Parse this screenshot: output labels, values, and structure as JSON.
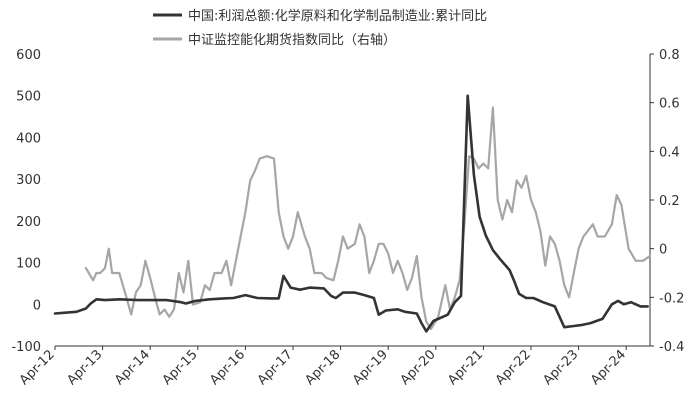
{
  "chart_data": {
    "type": "line",
    "title": "",
    "legend_position": "top-center",
    "grid": false,
    "left_axis": {
      "min": -100,
      "max": 600,
      "ticks": [
        "-100",
        "0",
        "100",
        "200",
        "300",
        "400",
        "500",
        "600"
      ]
    },
    "right_axis": {
      "min": -0.4,
      "max": 0.8,
      "ticks": [
        "-0.4",
        "-0.2",
        "0",
        "0.2",
        "0.4",
        "0.6",
        "0.8"
      ]
    },
    "x_labels": [
      "Apr-12",
      "Apr-13",
      "Apr-14",
      "Apr-15",
      "Apr-16",
      "Apr-17",
      "Apr-18",
      "Apr-19",
      "Apr-20",
      "Apr-21",
      "Apr-22",
      "Apr-23",
      "Apr-24"
    ],
    "series": [
      {
        "name": "中国:利润总额:化学原料和化学制品制造业:累计同比",
        "axis": "left",
        "color": "#333333",
        "points": [
          [
            2012.25,
            -22
          ],
          [
            2012.5,
            -20
          ],
          [
            2012.7,
            -18
          ],
          [
            2012.9,
            -10
          ],
          [
            2013.0,
            2
          ],
          [
            2013.12,
            12
          ],
          [
            2013.3,
            10
          ],
          [
            2013.6,
            12
          ],
          [
            2014.0,
            10
          ],
          [
            2014.3,
            10
          ],
          [
            2014.6,
            10
          ],
          [
            2014.9,
            5
          ],
          [
            2015.0,
            2
          ],
          [
            2015.2,
            8
          ],
          [
            2015.5,
            12
          ],
          [
            2015.8,
            14
          ],
          [
            2016.0,
            15
          ],
          [
            2016.25,
            22
          ],
          [
            2016.5,
            15
          ],
          [
            2016.8,
            14
          ],
          [
            2016.95,
            14
          ],
          [
            2017.05,
            68
          ],
          [
            2017.2,
            40
          ],
          [
            2017.4,
            35
          ],
          [
            2017.6,
            40
          ],
          [
            2017.9,
            38
          ],
          [
            2018.05,
            20
          ],
          [
            2018.15,
            15
          ],
          [
            2018.3,
            28
          ],
          [
            2018.55,
            28
          ],
          [
            2018.75,
            22
          ],
          [
            2018.95,
            15
          ],
          [
            2019.05,
            -25
          ],
          [
            2019.2,
            -15
          ],
          [
            2019.45,
            -12
          ],
          [
            2019.6,
            -18
          ],
          [
            2019.85,
            -22
          ],
          [
            2019.95,
            -45
          ],
          [
            2020.05,
            -65
          ],
          [
            2020.2,
            -40
          ],
          [
            2020.5,
            -25
          ],
          [
            2020.65,
            5
          ],
          [
            2020.78,
            20
          ],
          [
            2020.92,
            500
          ],
          [
            2021.05,
            310
          ],
          [
            2021.17,
            210
          ],
          [
            2021.3,
            165
          ],
          [
            2021.45,
            130
          ],
          [
            2021.6,
            108
          ],
          [
            2021.8,
            82
          ],
          [
            2021.9,
            55
          ],
          [
            2022.0,
            25
          ],
          [
            2022.15,
            15
          ],
          [
            2022.3,
            15
          ],
          [
            2022.5,
            5
          ],
          [
            2022.75,
            -5
          ],
          [
            2022.95,
            -55
          ],
          [
            2023.15,
            -52
          ],
          [
            2023.3,
            -50
          ],
          [
            2023.5,
            -45
          ],
          [
            2023.75,
            -35
          ],
          [
            2023.95,
            0
          ],
          [
            2024.08,
            8
          ],
          [
            2024.2,
            0
          ],
          [
            2024.35,
            5
          ],
          [
            2024.55,
            -5
          ],
          [
            2024.7,
            -5
          ]
        ]
      },
      {
        "name": "中证监控能化期货指数同比（右轴）",
        "axis": "right",
        "color": "#a6a6a6",
        "points": [
          [
            2012.9,
            -0.08
          ],
          [
            2013.05,
            -0.13
          ],
          [
            2013.12,
            -0.1
          ],
          [
            2013.2,
            -0.1
          ],
          [
            2013.3,
            -0.08
          ],
          [
            2013.38,
            0.0
          ],
          [
            2013.45,
            -0.1
          ],
          [
            2013.6,
            -0.1
          ],
          [
            2013.75,
            -0.2
          ],
          [
            2013.85,
            -0.27
          ],
          [
            2013.95,
            -0.18
          ],
          [
            2014.05,
            -0.15
          ],
          [
            2014.15,
            -0.05
          ],
          [
            2014.25,
            -0.12
          ],
          [
            2014.35,
            -0.2
          ],
          [
            2014.45,
            -0.27
          ],
          [
            2014.55,
            -0.25
          ],
          [
            2014.65,
            -0.28
          ],
          [
            2014.75,
            -0.25
          ],
          [
            2014.85,
            -0.1
          ],
          [
            2014.95,
            -0.18
          ],
          [
            2015.05,
            -0.05
          ],
          [
            2015.15,
            -0.23
          ],
          [
            2015.3,
            -0.22
          ],
          [
            2015.4,
            -0.15
          ],
          [
            2015.5,
            -0.17
          ],
          [
            2015.6,
            -0.1
          ],
          [
            2015.75,
            -0.1
          ],
          [
            2015.85,
            -0.05
          ],
          [
            2015.95,
            -0.15
          ],
          [
            2016.05,
            -0.05
          ],
          [
            2016.15,
            0.05
          ],
          [
            2016.25,
            0.15
          ],
          [
            2016.35,
            0.28
          ],
          [
            2016.45,
            0.32
          ],
          [
            2016.55,
            0.37
          ],
          [
            2016.7,
            0.38
          ],
          [
            2016.85,
            0.37
          ],
          [
            2016.95,
            0.15
          ],
          [
            2017.05,
            0.05
          ],
          [
            2017.15,
            0.0
          ],
          [
            2017.25,
            0.05
          ],
          [
            2017.35,
            0.15
          ],
          [
            2017.5,
            0.05
          ],
          [
            2017.6,
            0.0
          ],
          [
            2017.7,
            -0.1
          ],
          [
            2017.85,
            -0.1
          ],
          [
            2017.95,
            -0.12
          ],
          [
            2018.1,
            -0.13
          ],
          [
            2018.2,
            -0.05
          ],
          [
            2018.3,
            0.05
          ],
          [
            2018.4,
            0.0
          ],
          [
            2018.55,
            0.02
          ],
          [
            2018.65,
            0.1
          ],
          [
            2018.75,
            0.05
          ],
          [
            2018.85,
            -0.1
          ],
          [
            2018.95,
            -0.05
          ],
          [
            2019.05,
            0.02
          ],
          [
            2019.15,
            0.02
          ],
          [
            2019.25,
            -0.02
          ],
          [
            2019.35,
            -0.1
          ],
          [
            2019.45,
            -0.05
          ],
          [
            2019.55,
            -0.1
          ],
          [
            2019.65,
            -0.17
          ],
          [
            2019.75,
            -0.12
          ],
          [
            2019.85,
            -0.03
          ],
          [
            2019.95,
            -0.2
          ],
          [
            2020.05,
            -0.3
          ],
          [
            2020.15,
            -0.33
          ],
          [
            2020.3,
            -0.28
          ],
          [
            2020.45,
            -0.15
          ],
          [
            2020.55,
            -0.25
          ],
          [
            2020.65,
            -0.2
          ],
          [
            2020.75,
            -0.13
          ],
          [
            2020.85,
            0.1
          ],
          [
            2020.95,
            0.38
          ],
          [
            2021.05,
            0.37
          ],
          [
            2021.15,
            0.33
          ],
          [
            2021.25,
            0.35
          ],
          [
            2021.35,
            0.33
          ],
          [
            2021.45,
            0.58
          ],
          [
            2021.55,
            0.2
          ],
          [
            2021.65,
            0.12
          ],
          [
            2021.75,
            0.2
          ],
          [
            2021.85,
            0.15
          ],
          [
            2021.95,
            0.28
          ],
          [
            2022.05,
            0.25
          ],
          [
            2022.15,
            0.3
          ],
          [
            2022.25,
            0.2
          ],
          [
            2022.35,
            0.15
          ],
          [
            2022.45,
            0.07
          ],
          [
            2022.55,
            -0.07
          ],
          [
            2022.65,
            0.05
          ],
          [
            2022.75,
            0.02
          ],
          [
            2022.85,
            -0.05
          ],
          [
            2022.95,
            -0.15
          ],
          [
            2023.05,
            -0.2
          ],
          [
            2023.15,
            -0.1
          ],
          [
            2023.25,
            0.0
          ],
          [
            2023.35,
            0.05
          ],
          [
            2023.55,
            0.1
          ],
          [
            2023.65,
            0.05
          ],
          [
            2023.8,
            0.05
          ],
          [
            2023.95,
            0.1
          ],
          [
            2024.05,
            0.22
          ],
          [
            2024.15,
            0.18
          ],
          [
            2024.3,
            0.0
          ],
          [
            2024.45,
            -0.05
          ],
          [
            2024.6,
            -0.05
          ],
          [
            2024.75,
            -0.03
          ]
        ]
      }
    ]
  }
}
